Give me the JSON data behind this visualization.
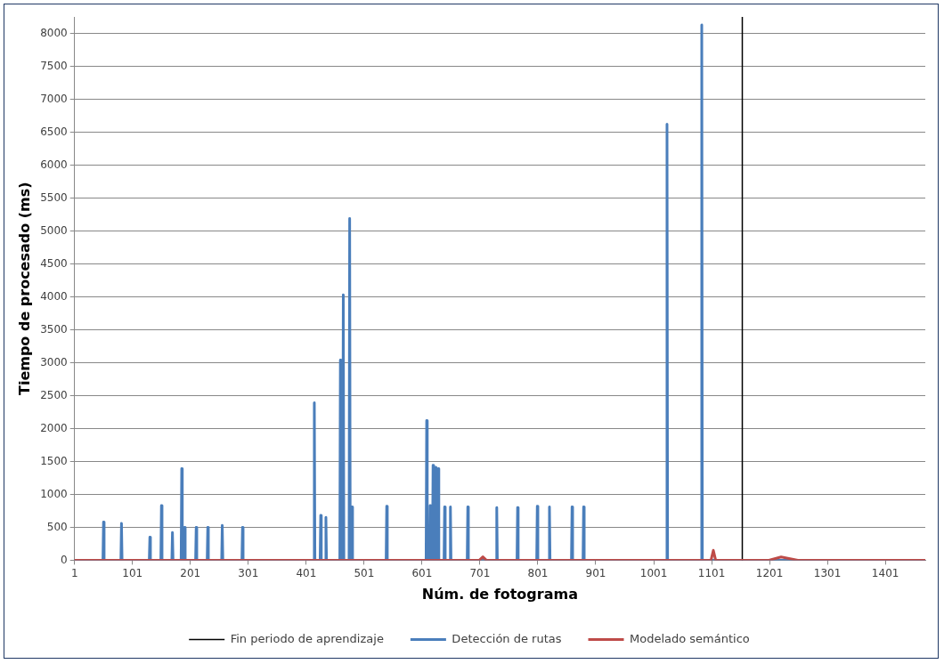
{
  "chart_data": {
    "type": "line",
    "xlabel": "Núm. de fotograma",
    "ylabel": "Tiempo de procesado (ms)",
    "xlim": [
      1,
      1470
    ],
    "xticks": [
      1,
      101,
      201,
      301,
      401,
      501,
      601,
      701,
      801,
      901,
      1001,
      1101,
      1201,
      1301,
      1401
    ],
    "ylim": [
      0,
      8250
    ],
    "yticks": [
      0,
      500,
      1000,
      1500,
      2000,
      2500,
      3000,
      3500,
      4000,
      4500,
      5000,
      5500,
      6000,
      6500,
      7000,
      7500,
      8000
    ],
    "grid": "y",
    "legend": "bottom",
    "marker": "none",
    "line_style": "solid",
    "series": [
      {
        "name": "Fin periodo de aprendizaje",
        "color": "#000000",
        "x": [
          1154,
          1154
        ],
        "values": [
          0,
          8250
        ]
      },
      {
        "name": "Detección de rutas",
        "color": "#4a7ebb",
        "x": [
          1,
          50,
          51,
          52,
          81,
          82,
          83,
          130,
          131,
          132,
          150,
          151,
          152,
          169,
          170,
          171,
          185,
          186,
          187,
          190,
          191,
          192,
          210,
          211,
          212,
          230,
          231,
          232,
          255,
          256,
          257,
          290,
          291,
          292,
          414,
          415,
          416,
          425,
          426,
          427,
          434,
          435,
          436,
          459,
          460,
          461,
          464,
          465,
          466,
          475,
          476,
          477,
          479,
          480,
          481,
          539,
          540,
          541,
          608,
          609,
          610,
          614,
          615,
          616,
          619,
          620,
          621,
          624,
          625,
          626,
          628,
          629,
          630,
          639,
          640,
          641,
          649,
          650,
          651,
          679,
          680,
          681,
          729,
          730,
          731,
          765,
          766,
          767,
          799,
          800,
          801,
          820,
          821,
          822,
          859,
          860,
          861,
          879,
          880,
          881,
          1023,
          1024,
          1025,
          1083,
          1084,
          1085,
          1470
        ],
        "values": [
          0,
          0,
          580,
          0,
          0,
          560,
          0,
          0,
          350,
          0,
          0,
          830,
          0,
          0,
          420,
          0,
          0,
          1390,
          0,
          0,
          500,
          0,
          0,
          500,
          0,
          0,
          500,
          0,
          0,
          530,
          0,
          0,
          500,
          0,
          0,
          2390,
          0,
          0,
          680,
          0,
          0,
          650,
          0,
          0,
          3040,
          0,
          0,
          4030,
          0,
          0,
          5190,
          0,
          0,
          810,
          0,
          0,
          820,
          0,
          0,
          2120,
          0,
          0,
          830,
          0,
          0,
          1440,
          0,
          0,
          1410,
          0,
          0,
          1390,
          0,
          0,
          810,
          0,
          0,
          810,
          0,
          0,
          810,
          0,
          0,
          800,
          0,
          0,
          800,
          0,
          0,
          820,
          0,
          0,
          810,
          0,
          0,
          810,
          0,
          0,
          810,
          0,
          0,
          6620,
          0,
          0,
          8130,
          0,
          0
        ]
      },
      {
        "name": "Modelado semántico",
        "color": "#be4b48",
        "x": [
          1,
          100,
          200,
          300,
          400,
          500,
          600,
          700,
          706,
          712,
          800,
          900,
          1000,
          1100,
          1104,
          1108,
          1200,
          1221,
          1250,
          1300,
          1400,
          1470
        ],
        "values": [
          0,
          0,
          0,
          0,
          0,
          0,
          0,
          0,
          50,
          0,
          0,
          0,
          0,
          0,
          150,
          0,
          0,
          50,
          0,
          0,
          0,
          0
        ]
      }
    ]
  }
}
